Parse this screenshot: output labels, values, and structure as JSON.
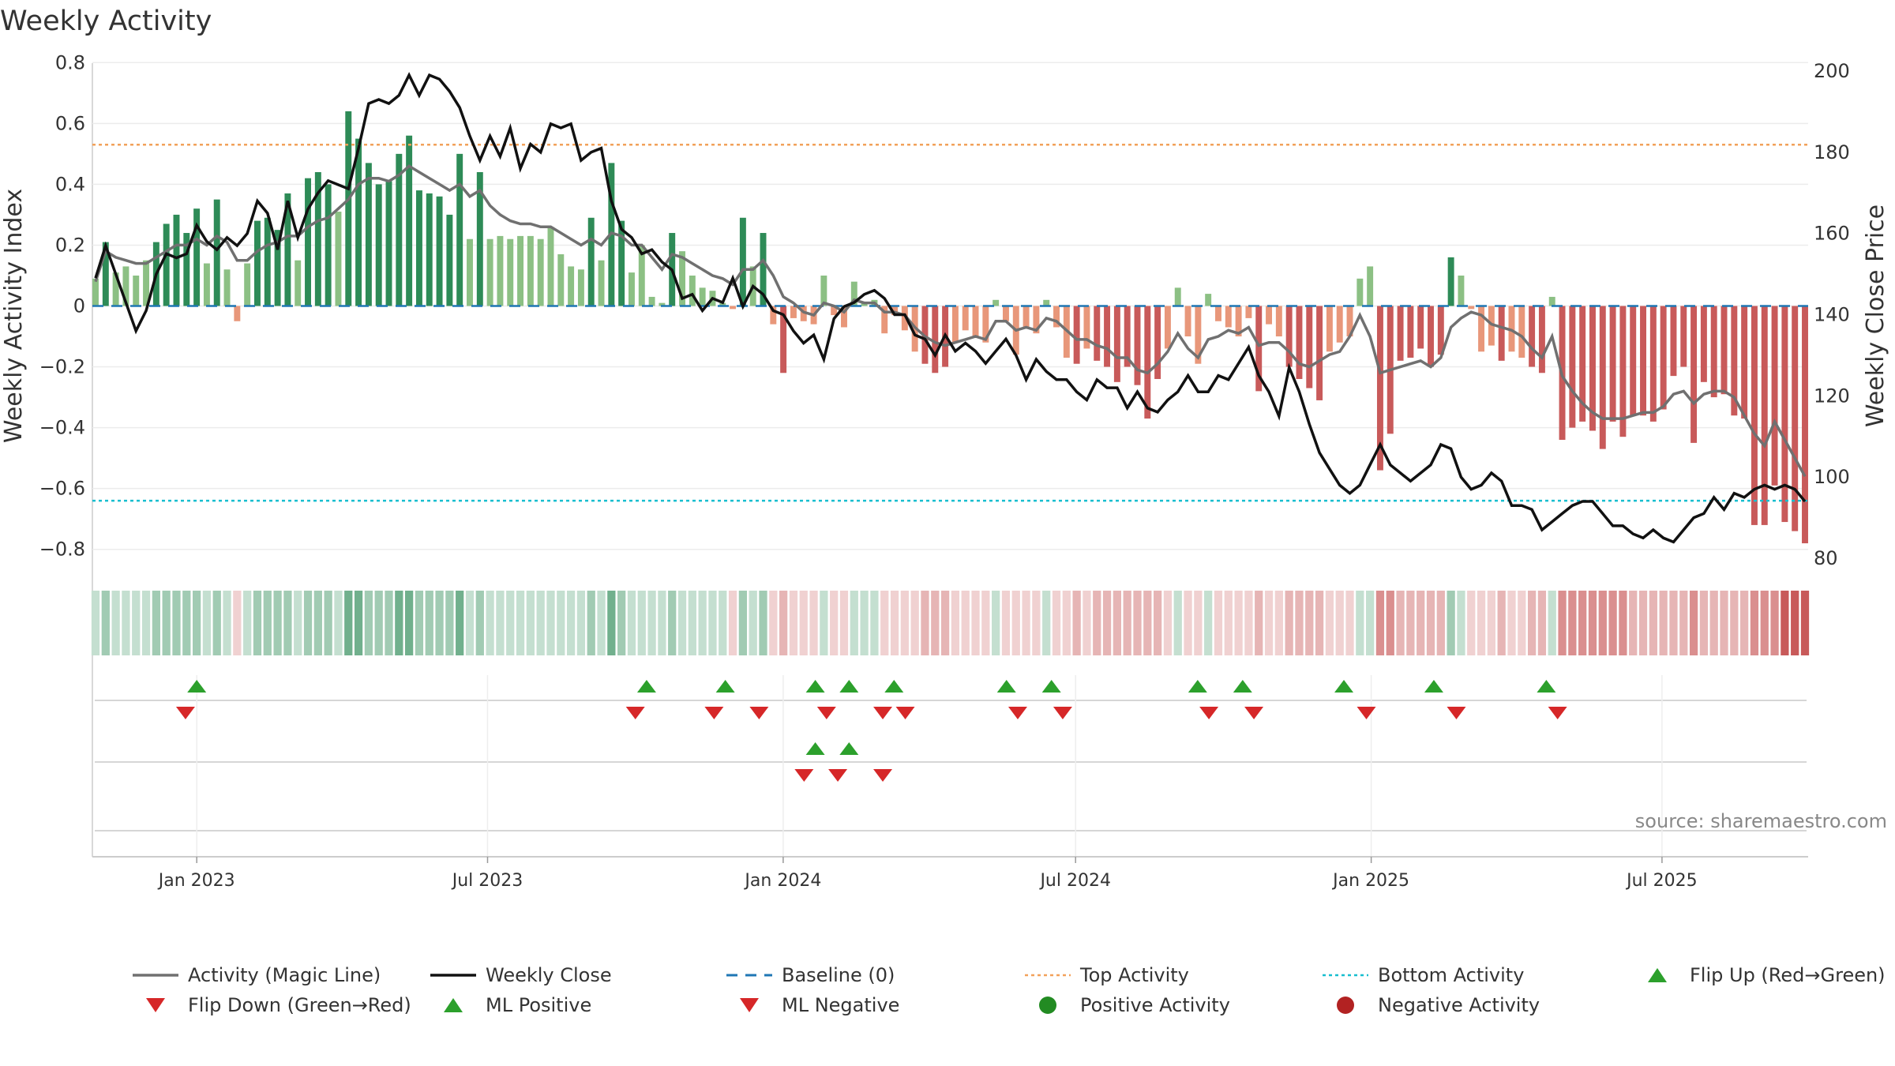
{
  "title": "Weekly Activity",
  "source": "source: sharemaestro.com",
  "colors": {
    "pos_dark": "#2e8b57",
    "pos_light": "#8cc084",
    "neg_dark": "#c85a5a",
    "neg_light": "#e8977a",
    "magic_line": "#707070",
    "close": "#111111",
    "baseline": "#1f77b4",
    "top": "#f2a15a",
    "bottom": "#17becf",
    "up_marker": "#2ca02c",
    "down_marker": "#d62728",
    "pos_dot": "#2ca02c",
    "neg_dot": "#b22222"
  },
  "chart_data": {
    "type": "bar",
    "y_left_label": "Weekly Activity Index",
    "y_right_label": "Weekly Close Price",
    "y_left_ticks": [
      "0.8",
      "0.6",
      "0.4",
      "0.2",
      "0",
      "−0.2",
      "−0.4",
      "−0.6",
      "−0.8"
    ],
    "y_left_tick_values": [
      0.8,
      0.6,
      0.4,
      0.2,
      0,
      -0.2,
      -0.4,
      -0.6,
      -0.8
    ],
    "y_right_ticks": [
      "200",
      "180",
      "160",
      "140",
      "120",
      "100",
      "80"
    ],
    "y_right_tick_values": [
      200,
      180,
      160,
      140,
      120,
      100,
      80
    ],
    "ylim_left": [
      -0.85,
      0.85
    ],
    "ylim_right": [
      80,
      200
    ],
    "x_tick_labels": [
      "Jan 2023",
      "Jul 2023",
      "Jan 2024",
      "Jul 2024",
      "Jan 2025",
      "Jul 2025"
    ],
    "x_tick_dates": [
      "2023-01-01",
      "2023-07-01",
      "2024-01-01",
      "2024-07-01",
      "2025-01-01",
      "2025-07-01"
    ],
    "date_range": [
      "2022-10-30",
      "2025-09-28"
    ],
    "top_activity": 0.53,
    "bottom_activity": -0.64,
    "activity": [
      0.09,
      0.21,
      0.11,
      0.13,
      0.1,
      0.15,
      0.21,
      0.27,
      0.3,
      0.24,
      0.32,
      0.14,
      0.35,
      0.12,
      -0.05,
      0.14,
      0.28,
      0.29,
      0.25,
      0.37,
      0.15,
      0.42,
      0.44,
      0.4,
      0.31,
      0.64,
      0.55,
      0.47,
      0.4,
      0.41,
      0.5,
      0.56,
      0.38,
      0.37,
      0.36,
      0.3,
      0.5,
      0.22,
      0.44,
      0.22,
      0.23,
      0.22,
      0.23,
      0.23,
      0.22,
      0.26,
      0.17,
      0.13,
      0.12,
      0.29,
      0.15,
      0.47,
      0.28,
      0.11,
      0.2,
      0.03,
      0.01,
      0.24,
      0.18,
      0.1,
      0.06,
      0.05,
      0.01,
      -0.01,
      0.29,
      0.13,
      0.24,
      -0.06,
      -0.22,
      -0.04,
      -0.05,
      -0.06,
      0.1,
      -0.03,
      -0.07,
      0.08,
      0.01,
      0.02,
      -0.09,
      -0.03,
      -0.08,
      -0.15,
      -0.19,
      -0.22,
      -0.2,
      -0.12,
      -0.08,
      -0.1,
      -0.12,
      0.02,
      -0.05,
      -0.16,
      -0.07,
      -0.09,
      0.02,
      -0.07,
      -0.17,
      -0.19,
      -0.14,
      -0.18,
      -0.2,
      -0.25,
      -0.2,
      -0.26,
      -0.37,
      -0.24,
      -0.14,
      0.06,
      -0.1,
      -0.19,
      0.04,
      -0.05,
      -0.07,
      -0.1,
      -0.04,
      -0.28,
      -0.06,
      -0.1,
      -0.2,
      -0.24,
      -0.27,
      -0.31,
      -0.15,
      -0.12,
      -0.1,
      0.09,
      0.13,
      -0.54,
      -0.42,
      -0.18,
      -0.17,
      -0.14,
      -0.2,
      -0.16,
      0.16,
      0.1,
      -0.01,
      -0.15,
      -0.13,
      -0.18,
      -0.15,
      -0.17,
      -0.2,
      -0.22,
      0.03,
      -0.44,
      -0.4,
      -0.38,
      -0.41,
      -0.47,
      -0.38,
      -0.43,
      -0.36,
      -0.36,
      -0.38,
      -0.34,
      -0.23,
      -0.2,
      -0.45,
      -0.25,
      -0.3,
      -0.29,
      -0.36,
      -0.37,
      -0.72,
      -0.72,
      -0.59,
      -0.71,
      -0.74,
      -0.78
    ],
    "magic_line": [
      0.08,
      0.18,
      0.16,
      0.15,
      0.14,
      0.14,
      0.16,
      0.18,
      0.2,
      0.2,
      0.22,
      0.2,
      0.23,
      0.21,
      0.15,
      0.15,
      0.18,
      0.2,
      0.21,
      0.23,
      0.23,
      0.26,
      0.28,
      0.29,
      0.32,
      0.35,
      0.4,
      0.42,
      0.42,
      0.41,
      0.43,
      0.46,
      0.44,
      0.42,
      0.4,
      0.38,
      0.4,
      0.36,
      0.38,
      0.33,
      0.3,
      0.28,
      0.27,
      0.27,
      0.26,
      0.26,
      0.24,
      0.22,
      0.2,
      0.22,
      0.2,
      0.24,
      0.23,
      0.2,
      0.2,
      0.16,
      0.12,
      0.17,
      0.16,
      0.14,
      0.12,
      0.1,
      0.09,
      0.07,
      0.12,
      0.12,
      0.15,
      0.1,
      0.03,
      0.01,
      -0.02,
      -0.03,
      0.01,
      0,
      -0.02,
      0.02,
      0.01,
      0.01,
      -0.02,
      -0.02,
      -0.03,
      -0.07,
      -0.1,
      -0.12,
      -0.13,
      -0.12,
      -0.11,
      -0.1,
      -0.11,
      -0.05,
      -0.05,
      -0.08,
      -0.07,
      -0.08,
      -0.04,
      -0.05,
      -0.08,
      -0.11,
      -0.11,
      -0.13,
      -0.14,
      -0.17,
      -0.17,
      -0.21,
      -0.22,
      -0.19,
      -0.15,
      -0.09,
      -0.14,
      -0.17,
      -0.11,
      -0.1,
      -0.08,
      -0.09,
      -0.07,
      -0.13,
      -0.12,
      -0.12,
      -0.15,
      -0.19,
      -0.2,
      -0.18,
      -0.16,
      -0.15,
      -0.1,
      -0.03,
      -0.1,
      -0.22,
      -0.21,
      -0.2,
      -0.19,
      -0.18,
      -0.2,
      -0.17,
      -0.07,
      -0.04,
      -0.02,
      -0.03,
      -0.06,
      -0.07,
      -0.08,
      -0.1,
      -0.14,
      -0.17,
      -0.1,
      -0.23,
      -0.28,
      -0.32,
      -0.35,
      -0.37,
      -0.37,
      -0.37,
      -0.36,
      -0.35,
      -0.35,
      -0.33,
      -0.29,
      -0.28,
      -0.32,
      -0.29,
      -0.28,
      -0.28,
      -0.3,
      -0.36,
      -0.42,
      -0.46,
      -0.38,
      -0.44,
      -0.5,
      -0.56
    ],
    "close": [
      149,
      157,
      150,
      143,
      136,
      141,
      150,
      155,
      154,
      155,
      162,
      158,
      156,
      159,
      157,
      160,
      168,
      165,
      156,
      168,
      159,
      166,
      170,
      173,
      172,
      171,
      181,
      192,
      193,
      192,
      194,
      199,
      194,
      199,
      198,
      195,
      191,
      184,
      178,
      184,
      179,
      186,
      176,
      182,
      180,
      187,
      186,
      187,
      178,
      180,
      181,
      168,
      161,
      159,
      155,
      156,
      153,
      151,
      144,
      145,
      141,
      144,
      143,
      149,
      142,
      147,
      145,
      141,
      140,
      136,
      133,
      135,
      129,
      139,
      142,
      143,
      145,
      146,
      144,
      140,
      140,
      135,
      134,
      130,
      135,
      131,
      133,
      131,
      128,
      131,
      134,
      130,
      124,
      129,
      126,
      124,
      124,
      121,
      119,
      124,
      122,
      122,
      117,
      121,
      117,
      116,
      119,
      121,
      125,
      121,
      121,
      125,
      124,
      128,
      132,
      125,
      121,
      115,
      127,
      121,
      113,
      106,
      102,
      98,
      96,
      98,
      103,
      108,
      103,
      101,
      99,
      101,
      103,
      108,
      107,
      100,
      97,
      98,
      101,
      99,
      93,
      93,
      92,
      87,
      89,
      91,
      93,
      94,
      94,
      91,
      88,
      88,
      86,
      85,
      87,
      85,
      84,
      87,
      90,
      91,
      95,
      92,
      96,
      95,
      97,
      98,
      97,
      98,
      97,
      94
    ],
    "color_strength": [
      1,
      2,
      1,
      1,
      1,
      1,
      2,
      2,
      2,
      2,
      2,
      1,
      2,
      1,
      1,
      1,
      2,
      2,
      2,
      2,
      1,
      2,
      2,
      2,
      1,
      3,
      3,
      2,
      2,
      2,
      3,
      3,
      2,
      2,
      2,
      2,
      3,
      1,
      2,
      1,
      1,
      1,
      1,
      1,
      1,
      1,
      1,
      1,
      1,
      2,
      1,
      3,
      2,
      1,
      1,
      1,
      1,
      2,
      1,
      1,
      1,
      1,
      1,
      1,
      2,
      1,
      2,
      1,
      2,
      1,
      1,
      1,
      1,
      1,
      1,
      1,
      1,
      1,
      1,
      1,
      1,
      1,
      2,
      2,
      2,
      1,
      1,
      1,
      1,
      1,
      1,
      1,
      1,
      1,
      1,
      1,
      1,
      2,
      1,
      2,
      2,
      2,
      2,
      2,
      2,
      2,
      1,
      1,
      1,
      1,
      1,
      1,
      1,
      1,
      1,
      2,
      1,
      1,
      2,
      2,
      2,
      2,
      1,
      1,
      1,
      1,
      1,
      3,
      3,
      2,
      2,
      2,
      2,
      2,
      2,
      1,
      1,
      1,
      1,
      2,
      1,
      1,
      2,
      2,
      1,
      3,
      3,
      3,
      3,
      3,
      3,
      3,
      2,
      2,
      2,
      2,
      2,
      2,
      3,
      2,
      2,
      2,
      2,
      2,
      3,
      3,
      3,
      4,
      4,
      4
    ],
    "flip_up": [
      "2023-01-01",
      "2023-10-08",
      "2023-11-26",
      "2024-01-21",
      "2024-02-11",
      "2024-03-10",
      "2024-05-19",
      "2024-06-16",
      "2024-09-15",
      "2024-10-13",
      "2024-12-15",
      "2025-02-09",
      "2025-04-20"
    ],
    "flip_down": [
      "2022-12-25",
      "2023-10-01",
      "2023-11-19",
      "2023-12-17",
      "2024-01-28",
      "2024-03-03",
      "2024-03-17",
      "2024-05-26",
      "2024-06-23",
      "2024-09-22",
      "2024-10-20",
      "2024-12-29",
      "2025-02-23",
      "2025-04-27"
    ],
    "ml_positive": [
      "2024-01-21",
      "2024-02-11"
    ],
    "ml_negative": [
      "2024-01-14",
      "2024-02-04",
      "2024-03-03"
    ]
  },
  "legend": [
    {
      "label": "Activity (Magic Line)",
      "kind": "line",
      "color": "#707070"
    },
    {
      "label": "Weekly Close",
      "kind": "line",
      "color": "#111111"
    },
    {
      "label": "Baseline (0)",
      "kind": "dash",
      "color": "#1f77b4"
    },
    {
      "label": "Top Activity",
      "kind": "dot-line",
      "color": "#f2a15a"
    },
    {
      "label": "Bottom Activity",
      "kind": "dot-line",
      "color": "#17becf"
    },
    {
      "label": "Flip Up (Red→Green)",
      "kind": "tri-up",
      "color": "#2ca02c"
    },
    {
      "label": "Flip Down (Green→Red)",
      "kind": "tri-down",
      "color": "#d62728"
    },
    {
      "label": "ML Positive",
      "kind": "tri-up",
      "color": "#2ca02c"
    },
    {
      "label": "ML Negative",
      "kind": "tri-down",
      "color": "#d62728"
    },
    {
      "label": "Positive Activity",
      "kind": "circle",
      "color": "#228b22"
    },
    {
      "label": "Negative Activity",
      "kind": "circle",
      "color": "#b22222"
    }
  ]
}
